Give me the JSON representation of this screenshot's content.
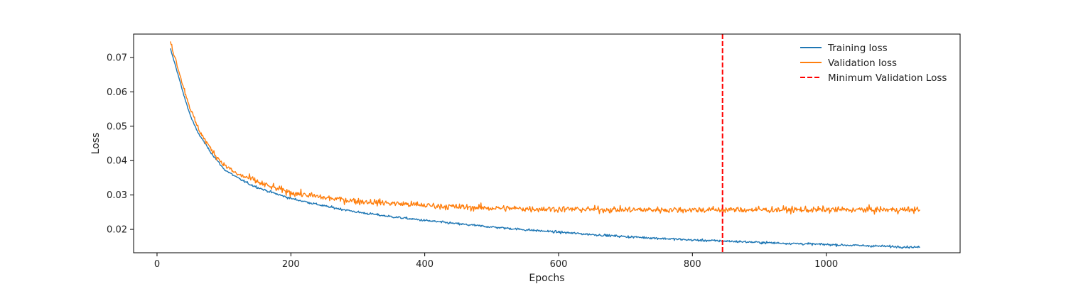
{
  "chart_data": {
    "type": "line",
    "xlabel": "Epochs",
    "ylabel": "Loss",
    "xlim": [
      -35,
      1200
    ],
    "ylim": [
      0.0132,
      0.0768
    ],
    "x_ticks": [
      0,
      200,
      400,
      600,
      800,
      1000
    ],
    "y_ticks": [
      0.02,
      0.03,
      0.04,
      0.05,
      0.06,
      0.07
    ],
    "x_tick_labels": [
      "0",
      "200",
      "400",
      "600",
      "800",
      "1000"
    ],
    "y_tick_labels": [
      "0.02",
      "0.03",
      "0.04",
      "0.05",
      "0.06",
      "0.07"
    ],
    "grid": false,
    "legend_position": "upper-right",
    "series": [
      {
        "name": "Training loss",
        "color": "#1f77b4",
        "style": "solid",
        "x": [
          20,
          30,
          40,
          50,
          60,
          70,
          80,
          90,
          100,
          120,
          140,
          160,
          180,
          200,
          250,
          300,
          350,
          400,
          450,
          500,
          550,
          600,
          650,
          700,
          750,
          800,
          850,
          900,
          950,
          1000,
          1050,
          1100,
          1140
        ],
        "y": [
          0.0725,
          0.066,
          0.059,
          0.053,
          0.0485,
          0.0455,
          0.0425,
          0.04,
          0.0375,
          0.035,
          0.033,
          0.0315,
          0.0302,
          0.029,
          0.0268,
          0.025,
          0.0237,
          0.0226,
          0.0216,
          0.0207,
          0.0199,
          0.0192,
          0.0185,
          0.0179,
          0.0174,
          0.0169,
          0.0166,
          0.0162,
          0.0159,
          0.0156,
          0.0153,
          0.015,
          0.0148
        ],
        "noise": 0.00025
      },
      {
        "name": "Validation loss",
        "color": "#ff7f0e",
        "style": "solid",
        "x": [
          20,
          30,
          40,
          50,
          60,
          70,
          80,
          90,
          100,
          120,
          140,
          160,
          180,
          200,
          250,
          300,
          350,
          400,
          450,
          500,
          550,
          600,
          650,
          700,
          750,
          800,
          850,
          900,
          950,
          1000,
          1050,
          1100,
          1140
        ],
        "y": [
          0.0745,
          0.068,
          0.061,
          0.055,
          0.05,
          0.0465,
          0.0435,
          0.041,
          0.0388,
          0.036,
          0.0347,
          0.033,
          0.0318,
          0.0307,
          0.0292,
          0.0282,
          0.0276,
          0.027,
          0.0265,
          0.0262,
          0.026,
          0.0259,
          0.0258,
          0.0257,
          0.0257,
          0.0257,
          0.0257,
          0.0257,
          0.0257,
          0.0257,
          0.0257,
          0.0257,
          0.0257
        ],
        "noise": 0.0007
      }
    ],
    "vline": {
      "name": "Minimum Validation Loss",
      "x": 845,
      "color": "#ff0000",
      "style": "dashed"
    }
  }
}
